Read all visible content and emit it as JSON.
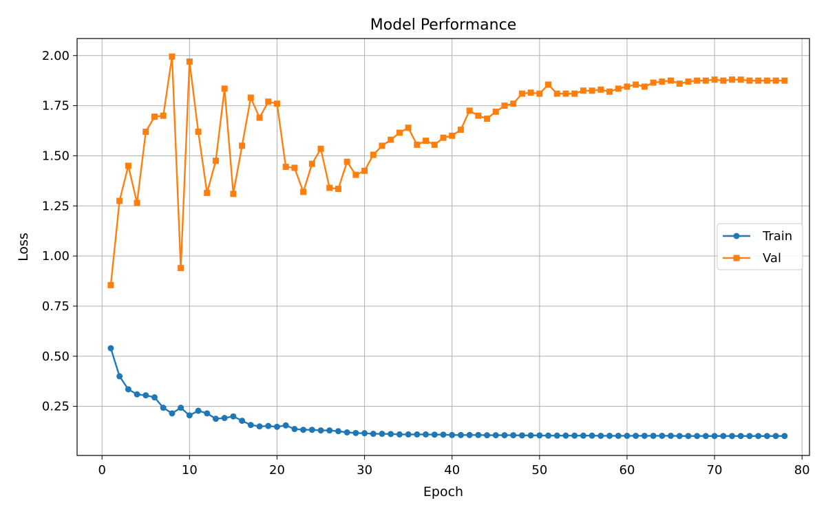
{
  "chart_data": {
    "type": "line",
    "title": "Model Performance",
    "xlabel": "Epoch",
    "ylabel": "Loss",
    "xlim": [
      -2.85,
      80.85
    ],
    "ylim": [
      0.005,
      2.085
    ],
    "xticks": [
      0,
      10,
      20,
      30,
      40,
      50,
      60,
      70,
      80
    ],
    "yticks": [
      0.25,
      0.5,
      0.75,
      1.0,
      1.25,
      1.5,
      1.75,
      2.0
    ],
    "grid": true,
    "legend_position": "center-right",
    "series": [
      {
        "name": "Train",
        "color": "#1f77b4",
        "marker": "circle",
        "x": [
          1,
          2,
          3,
          4,
          5,
          6,
          7,
          8,
          9,
          10,
          11,
          12,
          13,
          14,
          15,
          16,
          17,
          18,
          19,
          20,
          21,
          22,
          23,
          24,
          25,
          26,
          27,
          28,
          29,
          30,
          31,
          32,
          33,
          34,
          35,
          36,
          37,
          38,
          39,
          40,
          41,
          42,
          43,
          44,
          45,
          46,
          47,
          48,
          49,
          50,
          51,
          52,
          53,
          54,
          55,
          56,
          57,
          58,
          59,
          60,
          61,
          62,
          63,
          64,
          65,
          66,
          67,
          68,
          69,
          70,
          71,
          72,
          73,
          74,
          75,
          76,
          77,
          78
        ],
        "values": [
          0.54,
          0.4,
          0.335,
          0.31,
          0.305,
          0.295,
          0.243,
          0.215,
          0.243,
          0.205,
          0.228,
          0.215,
          0.188,
          0.192,
          0.2,
          0.178,
          0.157,
          0.15,
          0.152,
          0.148,
          0.155,
          0.137,
          0.133,
          0.133,
          0.13,
          0.13,
          0.126,
          0.12,
          0.117,
          0.116,
          0.113,
          0.113,
          0.112,
          0.11,
          0.11,
          0.11,
          0.11,
          0.109,
          0.109,
          0.107,
          0.107,
          0.107,
          0.107,
          0.106,
          0.106,
          0.106,
          0.106,
          0.105,
          0.105,
          0.105,
          0.104,
          0.104,
          0.104,
          0.104,
          0.104,
          0.104,
          0.103,
          0.103,
          0.103,
          0.103,
          0.103,
          0.103,
          0.103,
          0.103,
          0.103,
          0.102,
          0.102,
          0.102,
          0.102,
          0.102,
          0.102,
          0.102,
          0.102,
          0.102,
          0.102,
          0.102,
          0.102,
          0.102
        ]
      },
      {
        "name": "Val",
        "color": "#ff7f0e",
        "marker": "square",
        "x": [
          1,
          2,
          3,
          4,
          5,
          6,
          7,
          8,
          9,
          10,
          11,
          12,
          13,
          14,
          15,
          16,
          17,
          18,
          19,
          20,
          21,
          22,
          23,
          24,
          25,
          26,
          27,
          28,
          29,
          30,
          31,
          32,
          33,
          34,
          35,
          36,
          37,
          38,
          39,
          40,
          41,
          42,
          43,
          44,
          45,
          46,
          47,
          48,
          49,
          50,
          51,
          52,
          53,
          54,
          55,
          56,
          57,
          58,
          59,
          60,
          61,
          62,
          63,
          64,
          65,
          66,
          67,
          68,
          69,
          70,
          71,
          72,
          73,
          74,
          75,
          76,
          77,
          78
        ],
        "values": [
          0.855,
          1.275,
          1.45,
          1.265,
          1.62,
          1.695,
          1.7,
          1.995,
          0.94,
          1.97,
          1.62,
          1.315,
          1.475,
          1.835,
          1.31,
          1.55,
          1.79,
          1.69,
          1.77,
          1.76,
          1.445,
          1.44,
          1.32,
          1.46,
          1.535,
          1.34,
          1.335,
          1.47,
          1.405,
          1.425,
          1.505,
          1.55,
          1.58,
          1.615,
          1.64,
          1.555,
          1.575,
          1.555,
          1.59,
          1.6,
          1.63,
          1.725,
          1.7,
          1.685,
          1.72,
          1.75,
          1.76,
          1.81,
          1.815,
          1.81,
          1.855,
          1.81,
          1.81,
          1.81,
          1.825,
          1.825,
          1.83,
          1.82,
          1.835,
          1.845,
          1.855,
          1.845,
          1.865,
          1.87,
          1.875,
          1.86,
          1.87,
          1.875,
          1.875,
          1.88,
          1.875,
          1.88,
          1.88,
          1.875,
          1.875,
          1.875,
          1.875,
          1.875
        ]
      }
    ]
  }
}
